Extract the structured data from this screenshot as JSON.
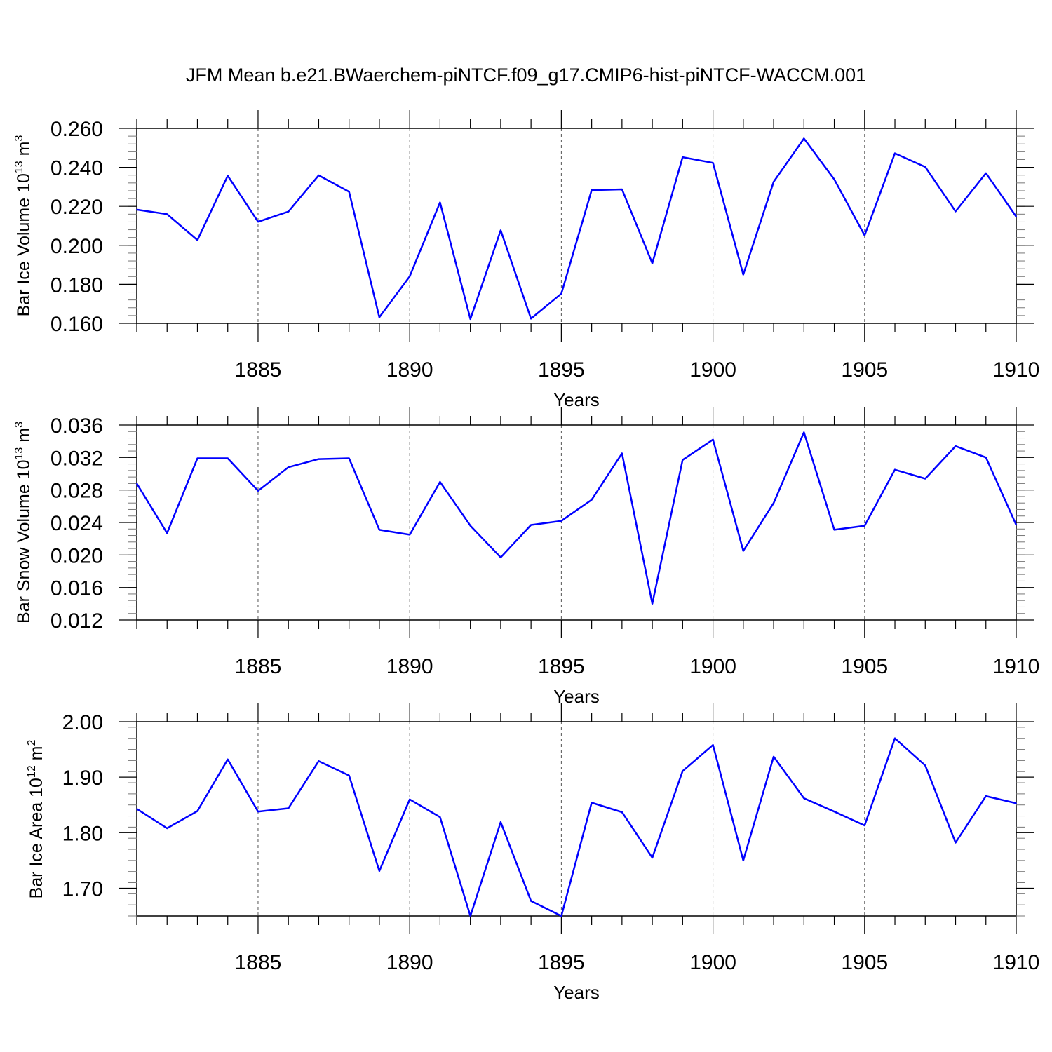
{
  "title": "JFM Mean b.e21.BWaerchem-piNTCF.f09_g17.CMIP6-hist-piNTCF-WACCM.001",
  "line_color": "#0000ff",
  "chart_data": [
    {
      "type": "line",
      "title": "JFM Mean b.e21.BWaerchem-piNTCF.f09_g17.CMIP6-hist-piNTCF-WACCM.001",
      "xlabel": "Years",
      "ylabel": "Bar Ice Volume 10",
      "ylabel_exp": "13",
      "ylabel_unit": " m",
      "ylabel_unit_exp": "3",
      "xlim": [
        1881,
        1910
      ],
      "ylim": [
        0.16,
        0.26
      ],
      "yticks": [
        "0.160",
        "0.180",
        "0.200",
        "0.220",
        "0.240",
        "0.260"
      ],
      "xticks": [
        1885,
        1890,
        1895,
        1900,
        1905,
        1910
      ],
      "grid": "vertical dashed at major x ticks",
      "x": [
        1881,
        1882,
        1883,
        1884,
        1885,
        1886,
        1887,
        1888,
        1889,
        1890,
        1891,
        1892,
        1893,
        1894,
        1895,
        1896,
        1897,
        1898,
        1899,
        1900,
        1901,
        1902,
        1903,
        1904,
        1905,
        1906,
        1907,
        1908,
        1909,
        1910
      ],
      "series": [
        {
          "values": [
            0.2183,
            0.216,
            0.2027,
            0.2357,
            0.2121,
            0.2173,
            0.2359,
            0.2275,
            0.1631,
            0.1841,
            0.222,
            0.1622,
            0.2077,
            0.1624,
            0.1752,
            0.2283,
            0.2287,
            0.1908,
            0.2452,
            0.2423,
            0.185,
            0.2326,
            0.2548,
            0.2338,
            0.2051,
            0.2472,
            0.2402,
            0.2174,
            0.237,
            0.2147
          ]
        }
      ]
    },
    {
      "type": "line",
      "xlabel": "Years",
      "ylabel": "Bar Snow Volume 10",
      "ylabel_exp": "13",
      "ylabel_unit": " m",
      "ylabel_unit_exp": "3",
      "xlim": [
        1881,
        1910
      ],
      "ylim": [
        0.012,
        0.036
      ],
      "yticks": [
        "0.012",
        "0.016",
        "0.020",
        "0.024",
        "0.028",
        "0.032",
        "0.036"
      ],
      "xticks": [
        1885,
        1890,
        1895,
        1900,
        1905,
        1910
      ],
      "grid": "vertical dashed at major x ticks",
      "x": [
        1881,
        1882,
        1883,
        1884,
        1885,
        1886,
        1887,
        1888,
        1889,
        1890,
        1891,
        1892,
        1893,
        1894,
        1895,
        1896,
        1897,
        1898,
        1899,
        1900,
        1901,
        1902,
        1903,
        1904,
        1905,
        1906,
        1907,
        1908,
        1909,
        1910
      ],
      "series": [
        {
          "values": [
            0.0288,
            0.0227,
            0.0319,
            0.0319,
            0.0279,
            0.0308,
            0.0318,
            0.0319,
            0.0231,
            0.0225,
            0.029,
            0.0236,
            0.0197,
            0.0237,
            0.0242,
            0.0268,
            0.0325,
            0.014,
            0.0317,
            0.0342,
            0.0205,
            0.0264,
            0.0351,
            0.0231,
            0.0236,
            0.0305,
            0.0294,
            0.0334,
            0.032,
            0.0237
          ]
        }
      ]
    },
    {
      "type": "line",
      "xlabel": "Years",
      "ylabel": "Bar Ice Area 10",
      "ylabel_exp": "12",
      "ylabel_unit": " m",
      "ylabel_unit_exp": "2",
      "xlim": [
        1881,
        1910
      ],
      "ylim": [
        1.65,
        2.0
      ],
      "yticks": [
        "1.70",
        "1.80",
        "1.90",
        "2.00"
      ],
      "xticks": [
        1885,
        1890,
        1895,
        1900,
        1905,
        1910
      ],
      "grid": "vertical dashed at major x ticks",
      "x": [
        1881,
        1882,
        1883,
        1884,
        1885,
        1886,
        1887,
        1888,
        1889,
        1890,
        1891,
        1892,
        1893,
        1894,
        1895,
        1896,
        1897,
        1898,
        1899,
        1900,
        1901,
        1902,
        1903,
        1904,
        1905,
        1906,
        1907,
        1908,
        1909,
        1910
      ],
      "series": [
        {
          "values": [
            1.843,
            1.808,
            1.839,
            1.932,
            1.838,
            1.844,
            1.929,
            1.903,
            1.731,
            1.86,
            1.828,
            1.65,
            1.819,
            1.677,
            1.65,
            1.854,
            1.837,
            1.755,
            1.911,
            1.958,
            1.75,
            1.937,
            1.862,
            1.838,
            1.813,
            1.97,
            1.921,
            1.782,
            1.866,
            1.853
          ]
        }
      ]
    }
  ]
}
